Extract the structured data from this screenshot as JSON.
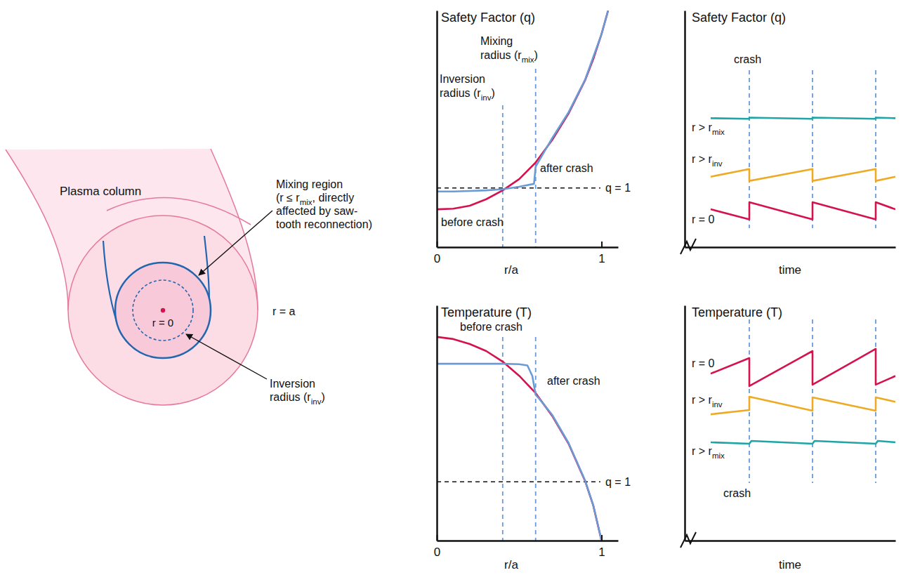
{
  "diagram": {
    "plasma_column": "Plasma column",
    "outer_radius": "r = a",
    "center": "r = 0",
    "mixing_region": [
      [
        {
          "text": "Mixing region"
        }
      ],
      [
        {
          "text": "(r ≤ r"
        },
        {
          "text": "mix",
          "sub": true
        },
        {
          "text": ", directly"
        }
      ],
      [
        {
          "text": "affected by saw-"
        }
      ],
      [
        {
          "text": "tooth reconnection)"
        }
      ]
    ],
    "inversion_radius": [
      [
        {
          "text": "Inversion"
        }
      ],
      [
        {
          "text": "radius (r"
        },
        {
          "text": "inv",
          "sub": true
        },
        {
          "text": ")"
        }
      ]
    ]
  },
  "chart_data": [
    {
      "type": "line",
      "title": "Safety Factor (q)",
      "x_label": "r/a",
      "xlim": [
        0,
        1.1
      ],
      "xticks": [
        0,
        1
      ],
      "ylim": [
        0,
        4
      ],
      "yticks": [],
      "tick_labels": "x",
      "series": [
        {
          "label": [
            [
              {
                "text": "before crash"
              }
            ]
          ],
          "color": "#d4124e",
          "x": [
            0,
            0.1,
            0.2,
            0.3,
            0.4,
            0.5,
            0.6,
            0.7,
            0.8,
            0.9,
            0.95,
            1.0,
            1.04
          ],
          "values": [
            0.64,
            0.65,
            0.7,
            0.81,
            0.96,
            1.15,
            1.43,
            1.81,
            2.26,
            2.82,
            3.18,
            3.6,
            4.0
          ]
        },
        {
          "label": [
            [
              {
                "text": "after crash"
              }
            ]
          ],
          "color": "#6b9bd6",
          "x": [
            0,
            0.1,
            0.2,
            0.3,
            0.4,
            0.5,
            0.59,
            0.6,
            0.65,
            0.7,
            0.8,
            0.9,
            1.0,
            1.04
          ],
          "values": [
            0.94,
            0.94,
            0.95,
            0.96,
            0.98,
            1.02,
            1.07,
            1.36,
            1.6,
            1.84,
            2.28,
            2.83,
            3.6,
            4.0
          ]
        }
      ],
      "vlines": [
        {
          "value": 0.4,
          "label": [
            [
              {
                "text": "Inversion"
              }
            ],
            [
              {
                "text": "radius (r"
              },
              {
                "text": "inv",
                "sub": true
              },
              {
                "text": ")"
              }
            ]
          ]
        },
        {
          "value": 0.6,
          "label": [
            [
              {
                "text": "Mixing"
              }
            ],
            [
              {
                "text": "radius (r"
              },
              {
                "text": "mix",
                "sub": true
              },
              {
                "text": ")"
              }
            ]
          ]
        }
      ],
      "hlines": [
        {
          "value": 1,
          "label": "q = 1"
        }
      ]
    },
    {
      "type": "line",
      "title": "Temperature (T)",
      "x_label": "r/a",
      "xlim": [
        0,
        1.1
      ],
      "xticks": [
        0,
        1
      ],
      "ylim": [
        0,
        1
      ],
      "yticks": [],
      "tick_labels": "x",
      "series": [
        {
          "label": [
            [
              {
                "text": "before crash"
              }
            ]
          ],
          "color": "#d4124e",
          "x": [
            0,
            0.1,
            0.2,
            0.3,
            0.4,
            0.5,
            0.6,
            0.7,
            0.8,
            0.9,
            0.95,
            1.0
          ],
          "values": [
            0.866,
            0.857,
            0.836,
            0.806,
            0.761,
            0.701,
            0.627,
            0.531,
            0.412,
            0.254,
            0.149,
            0
          ]
        },
        {
          "label": [
            [
              {
                "text": "after crash"
              }
            ]
          ],
          "color": "#6b9bd6",
          "x": [
            0,
            0.1,
            0.2,
            0.3,
            0.4,
            0.5,
            0.55,
            0.58,
            0.6,
            0.62,
            0.7,
            0.8,
            0.9,
            0.95,
            1.0
          ],
          "values": [
            0.752,
            0.752,
            0.752,
            0.752,
            0.752,
            0.75,
            0.745,
            0.7,
            0.62,
            0.605,
            0.535,
            0.415,
            0.256,
            0.15,
            0
          ]
        }
      ],
      "vlines": [
        {
          "value": 0.4
        },
        {
          "value": 0.6
        }
      ],
      "hlines": [
        {
          "value": 0.25,
          "label": "q = 1"
        }
      ]
    },
    {
      "type": "line",
      "title": "Safety Factor (q)",
      "x_label": "time",
      "xlim": [
        0,
        3
      ],
      "xticks": [],
      "ylim": [
        0,
        4
      ],
      "yticks": [],
      "tick_labels": false,
      "series": [
        {
          "label": [
            [
              {
                "text": "r > r"
              },
              {
                "text": "mix",
                "sub": true
              }
            ]
          ],
          "color": "#1fa5a5",
          "x": [
            0.37,
            0.92,
            0.92,
            1.82,
            1.82,
            2.72,
            2.72,
            3.0
          ],
          "values": [
            2.18,
            2.17,
            2.19,
            2.17,
            2.19,
            2.17,
            2.19,
            2.18
          ]
        },
        {
          "label": [
            [
              {
                "text": "r > r"
              },
              {
                "text": "inv",
                "sub": true
              }
            ]
          ],
          "color": "#eeaa22",
          "x": [
            0.37,
            0.92,
            0.92,
            1.82,
            1.82,
            2.72,
            2.72,
            3.0
          ],
          "values": [
            1.19,
            1.32,
            1.12,
            1.32,
            1.12,
            1.32,
            1.12,
            1.19
          ]
        },
        {
          "label": [
            [
              {
                "text": "r = 0"
              }
            ]
          ],
          "color": "#d4124e",
          "x": [
            0.37,
            0.92,
            0.92,
            1.82,
            1.82,
            2.72,
            2.72,
            3.0
          ],
          "values": [
            0.64,
            0.47,
            0.76,
            0.47,
            0.76,
            0.47,
            0.76,
            0.64
          ]
        }
      ],
      "vlines": [
        {
          "value": 0.92
        },
        {
          "value": 1.82
        },
        {
          "value": 2.72
        }
      ],
      "annotations": [
        {
          "text": "crash"
        }
      ]
    },
    {
      "type": "line",
      "title": "Temperature (T)",
      "x_label": "time",
      "xlim": [
        0,
        3
      ],
      "xticks": [],
      "ylim": [
        0,
        1
      ],
      "yticks": [],
      "tick_labels": false,
      "series": [
        {
          "label": [
            [
              {
                "text": "r = 0"
              }
            ]
          ],
          "color": "#d4124e",
          "x": [
            0.37,
            0.92,
            0.92,
            1.82,
            1.82,
            2.72,
            2.72,
            3.0
          ],
          "values": [
            0.71,
            0.776,
            0.657,
            0.806,
            0.663,
            0.815,
            0.663,
            0.7
          ]
        },
        {
          "label": [
            [
              {
                "text": "r > r"
              },
              {
                "text": "inv",
                "sub": true
              }
            ]
          ],
          "color": "#eeaa22",
          "x": [
            0.37,
            0.92,
            0.92,
            1.82,
            1.82,
            2.72,
            2.72,
            3.0
          ],
          "values": [
            0.537,
            0.555,
            0.612,
            0.552,
            0.609,
            0.552,
            0.609,
            0.59
          ]
        },
        {
          "label": [
            [
              {
                "text": "r > r"
              },
              {
                "text": "mix",
                "sub": true
              }
            ]
          ],
          "color": "#1fa5a5",
          "x": [
            0.37,
            0.92,
            0.95,
            1.82,
            1.85,
            2.72,
            2.75,
            3.0
          ],
          "values": [
            0.418,
            0.412,
            0.424,
            0.412,
            0.424,
            0.412,
            0.424,
            0.418
          ]
        }
      ],
      "vlines": [
        {
          "value": 0.92
        },
        {
          "value": 1.82
        },
        {
          "value": 2.72
        }
      ],
      "annotations": [
        {
          "text": "crash"
        }
      ]
    }
  ]
}
